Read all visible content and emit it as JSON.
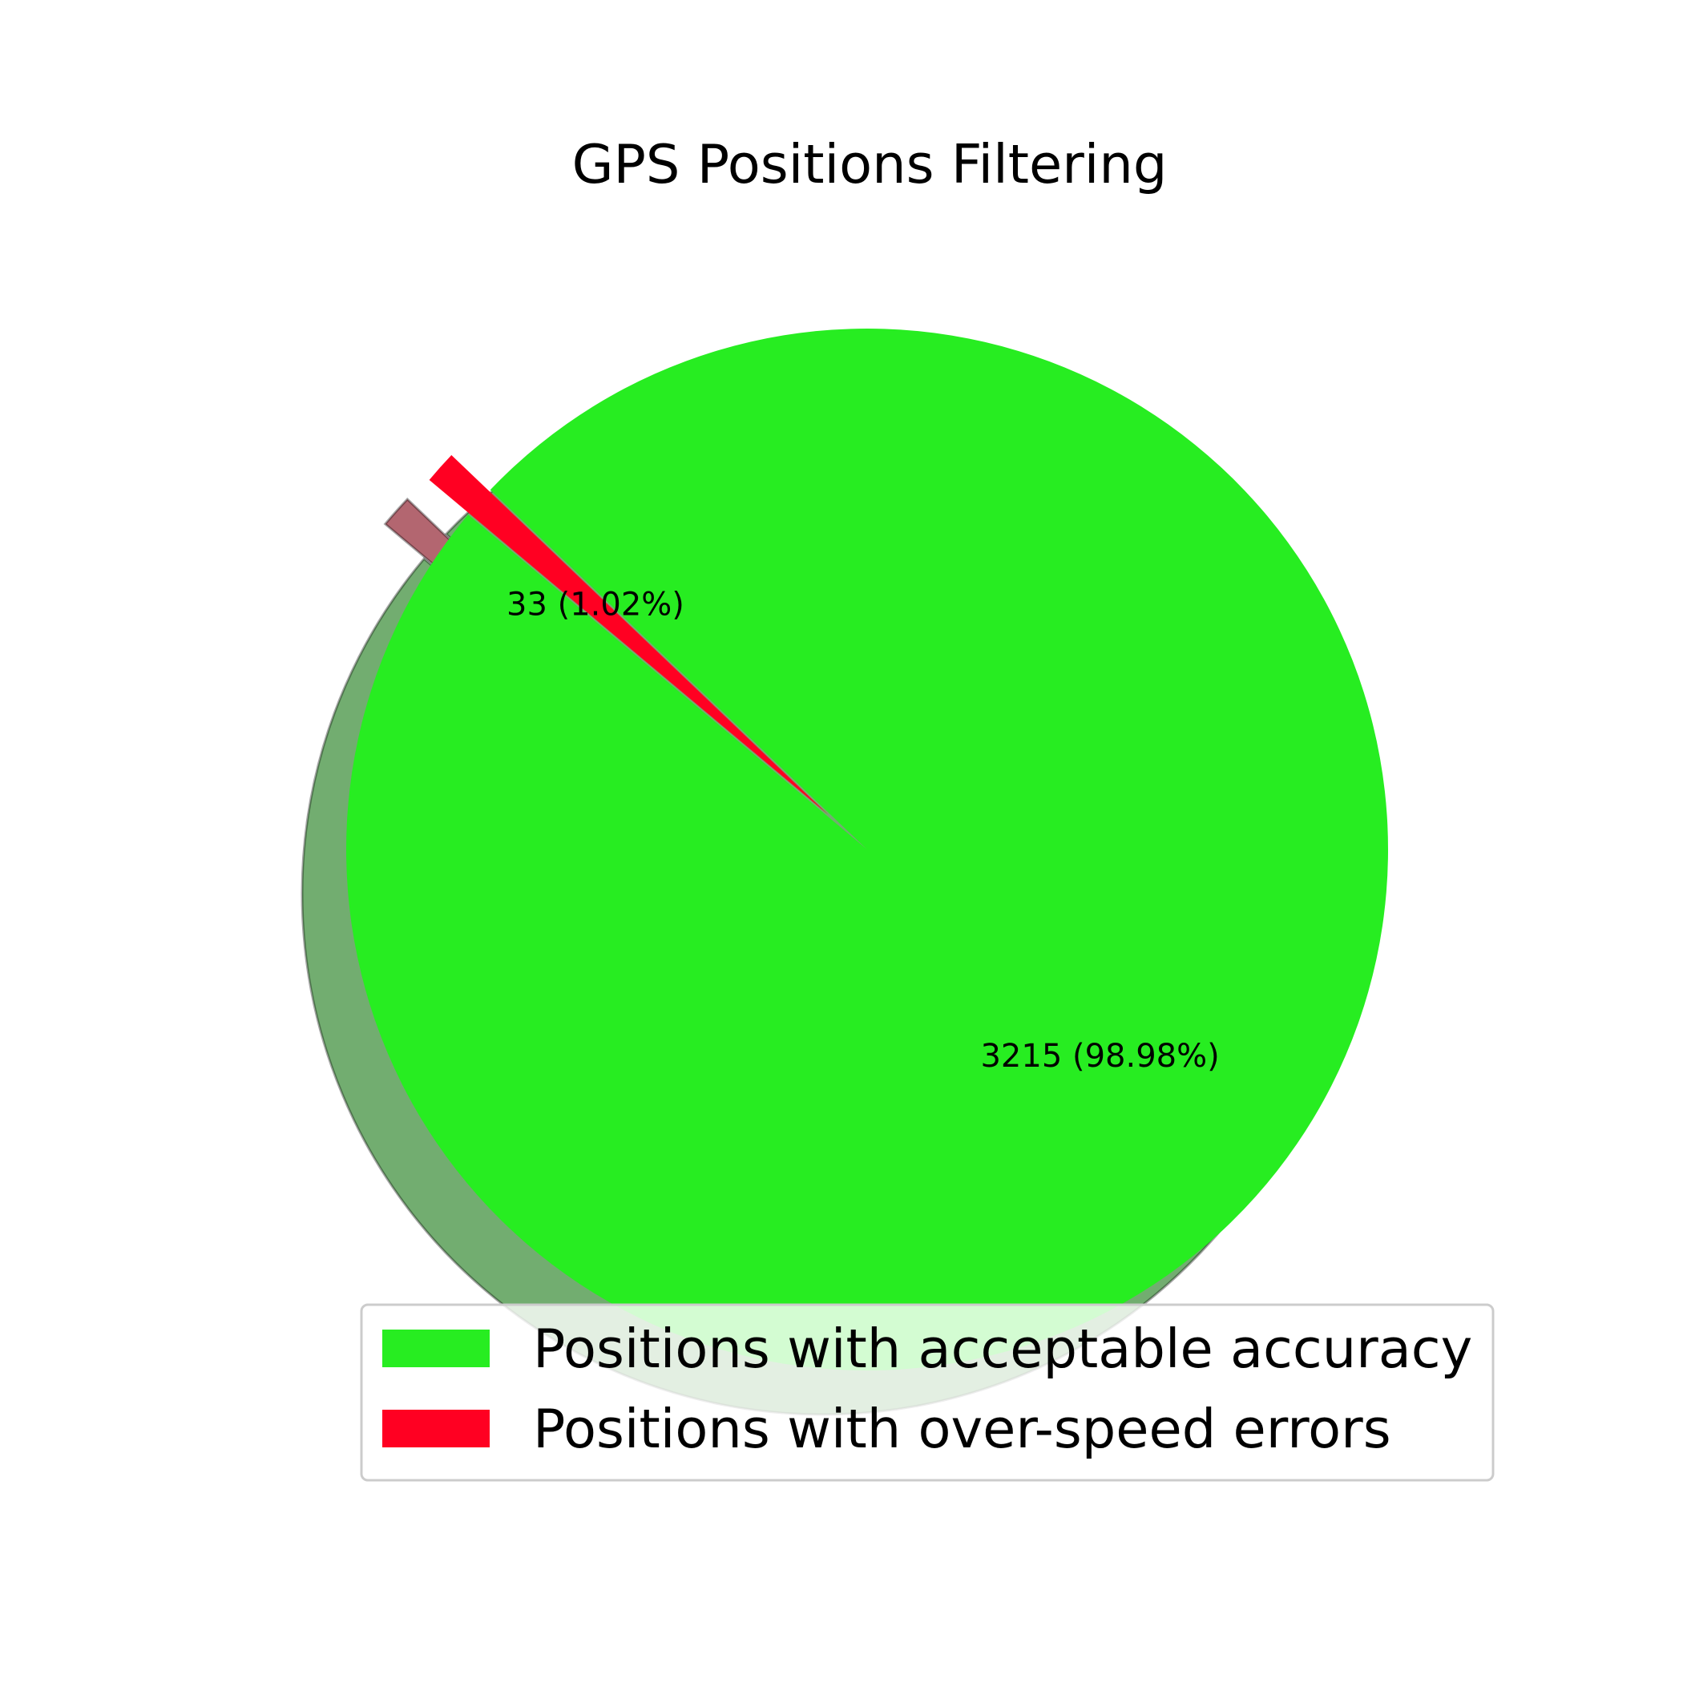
{
  "chart_data": {
    "type": "pie",
    "title": "GPS Positions Filtering",
    "slices": [
      {
        "name": "Positions with acceptable accuracy",
        "value": 3215,
        "label": "3215 (98.98%)",
        "color": "#27ed21",
        "exploded": false
      },
      {
        "name": "Positions with over-speed errors",
        "value": 33,
        "label": "33 (1.02%)",
        "color": "#ff0022",
        "exploded": true
      }
    ],
    "shadow": true,
    "legend": {
      "placement": "lower-right",
      "entries": [
        {
          "name": "Positions with acceptable accuracy",
          "color": "#27ed21"
        },
        {
          "name": "Positions with over-speed errors",
          "color": "#ff0022"
        }
      ]
    }
  }
}
